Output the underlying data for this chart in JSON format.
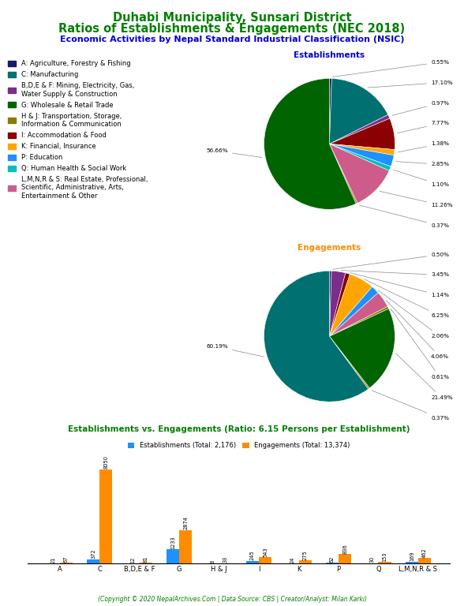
{
  "title_line1": "Duhabi Municipality, Sunsari District",
  "title_line2": "Ratios of Establishments & Engagements (NEC 2018)",
  "subtitle": "Economic Activities by Nepal Standard Industrial Classification (NSIC)",
  "title_color": "#008000",
  "subtitle_color": "#0000CD",
  "legend_labels": [
    "A: Agriculture, Forestry & Fishing",
    "C: Manufacturing",
    "B,D,E & F: Mining, Electricity, Gas,\nWater Supply & Construction",
    "G: Wholesale & Retail Trade",
    "H & J: Transportation, Storage,\nInformation & Communication",
    "I: Accommodation & Food",
    "K: Financial, Insurance",
    "P: Education",
    "Q: Human Health & Social Work",
    "L,M,N,R & S: Real Estate, Professional,\nScientific, Administrative, Arts,\nEntertainment & Other"
  ],
  "legend_colors": [
    "#191970",
    "#007070",
    "#7B2D8B",
    "#006400",
    "#8B7B00",
    "#8B0000",
    "#FFA500",
    "#1E90FF",
    "#00BFBF",
    "#CD5C8A"
  ],
  "estab_label": "Establishments",
  "estab_label_color": "#0000CC",
  "estab_percentages": [
    0.55,
    17.1,
    0.97,
    7.77,
    1.38,
    2.85,
    1.1,
    11.26,
    0.37,
    56.66
  ],
  "estab_pct_labels": [
    "0.55%",
    "17.10%",
    "0.97%",
    "7.77%",
    "1.38%",
    "2.85%",
    "1.10%",
    "11.26%",
    "0.37%",
    "56.66%"
  ],
  "estab_colors": [
    "#191970",
    "#007070",
    "#7B2D8B",
    "#8B0000",
    "#FFA500",
    "#1E90FF",
    "#00BFBF",
    "#CD5C8A",
    "#8B7B00",
    "#006400"
  ],
  "engage_label": "Engagements",
  "engage_label_color": "#FF8C00",
  "engage_percentages": [
    0.5,
    3.45,
    1.14,
    6.25,
    2.06,
    4.06,
    0.61,
    21.49,
    0.37,
    60.19
  ],
  "engage_pct_labels": [
    "0.50%",
    "3.45%",
    "1.14%",
    "6.25%",
    "2.06%",
    "4.06%",
    "0.61%",
    "21.49%",
    "0.37%",
    "60.19%"
  ],
  "engage_colors": [
    "#191970",
    "#7B2D8B",
    "#8B0000",
    "#FFA500",
    "#1E90FF",
    "#CD5C8A",
    "#8B7B00",
    "#006400",
    "#8B7B00",
    "#007070"
  ],
  "bar_title": "Establishments vs. Engagements (Ratio: 6.15 Persons per Establishment)",
  "bar_title_color": "#008000",
  "bar_categories": [
    "A",
    "C",
    "B,D,E & F",
    "G",
    "H & J",
    "I",
    "K",
    "P",
    "Q",
    "L,M,N,R & S"
  ],
  "estab_values": [
    21,
    372,
    12,
    1233,
    8,
    245,
    24,
    62,
    30,
    169
  ],
  "engage_values": [
    67,
    8050,
    81,
    2874,
    33,
    543,
    275,
    836,
    153,
    462
  ],
  "estab_bar_color": "#1E90FF",
  "engage_bar_color": "#FF8C00",
  "estab_legend": "Establishments (Total: 2,176)",
  "engage_legend": "Engagements (Total: 13,374)",
  "footer": "(Copyright © 2020 NepalArchives.Com | Data Source: CBS | Creator/Analyst: Milan Karki)",
  "footer_color": "#008000"
}
